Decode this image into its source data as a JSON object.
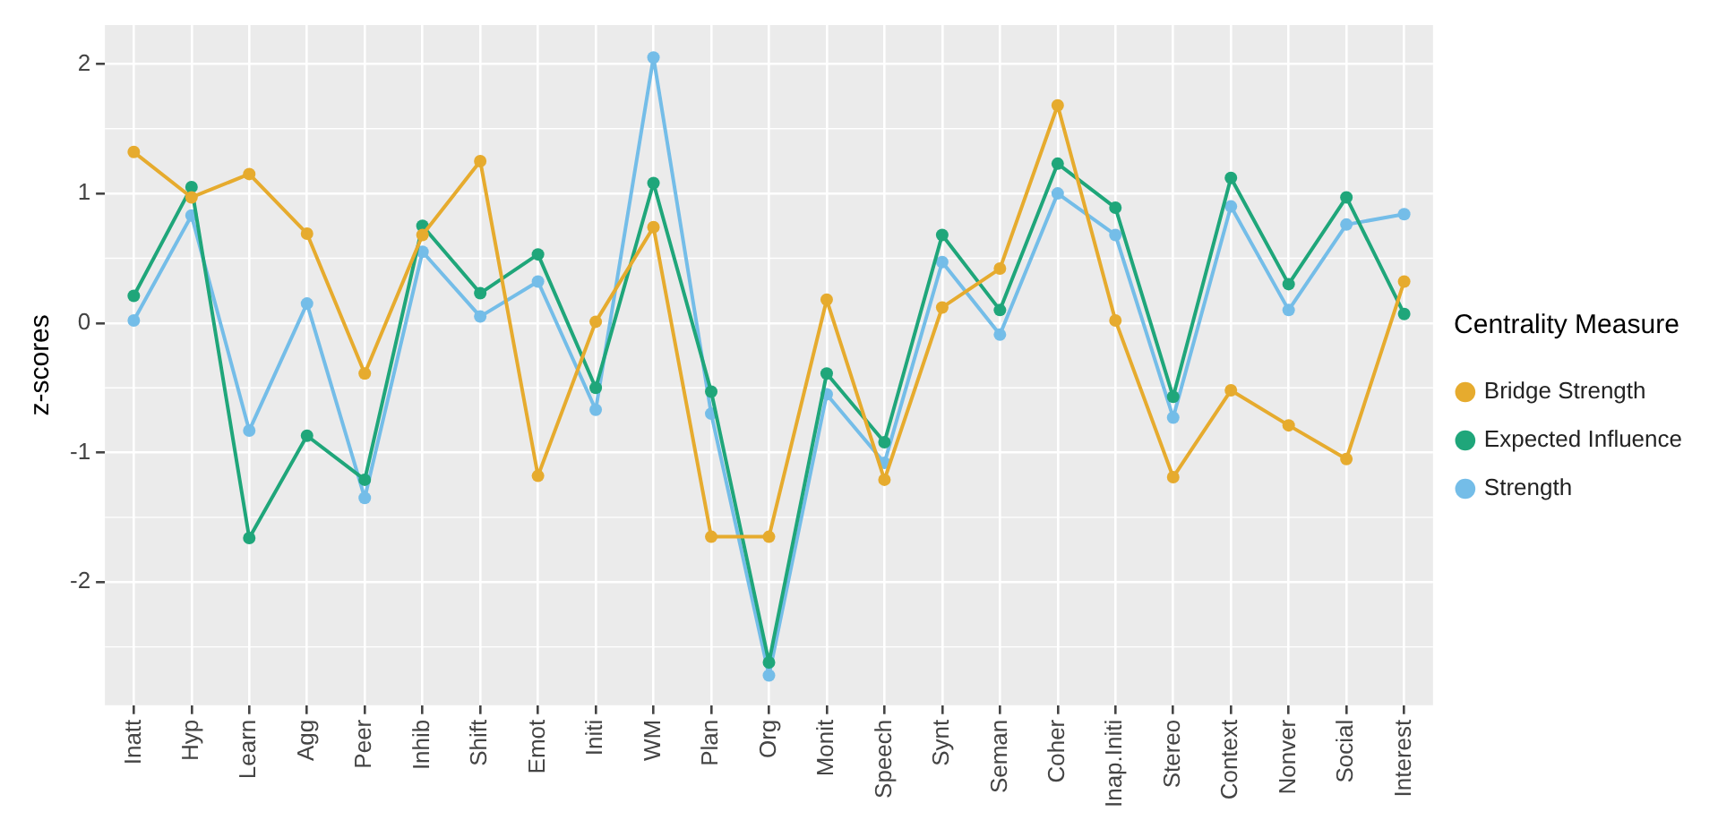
{
  "chart_data": {
    "type": "line",
    "ylabel": "z-scores",
    "legend_title": "Centrality Measure",
    "categories": [
      "Inatt",
      "Hyp",
      "Learn",
      "Agg",
      "Peer",
      "Inhib",
      "Shift",
      "Emot",
      "Initi",
      "WM",
      "Plan",
      "Org",
      "Monit",
      "Speech",
      "Synt",
      "Seman",
      "Coher",
      "Inap.Initi",
      "Stereo",
      "Context",
      "Nonver",
      "Social",
      "Interest"
    ],
    "series": [
      {
        "name": "Bridge Strength",
        "color": "#e6ab2e",
        "values": [
          1.32,
          0.97,
          1.15,
          0.69,
          -0.39,
          0.68,
          1.25,
          -1.18,
          0.01,
          0.74,
          -1.65,
          -1.65,
          0.18,
          -1.21,
          0.12,
          0.42,
          1.68,
          0.02,
          -1.19,
          -0.52,
          -0.79,
          -1.05,
          0.32
        ]
      },
      {
        "name": "Expected Influence",
        "color": "#1fa67a",
        "values": [
          0.21,
          1.05,
          -1.66,
          -0.87,
          -1.21,
          0.75,
          0.23,
          0.53,
          -0.5,
          1.08,
          -0.53,
          -2.62,
          -0.39,
          -0.92,
          0.68,
          0.1,
          1.23,
          0.89,
          -0.57,
          1.12,
          0.3,
          0.97,
          0.07
        ]
      },
      {
        "name": "Strength",
        "color": "#74bde8",
        "values": [
          0.02,
          0.83,
          -0.83,
          0.15,
          -1.35,
          0.55,
          0.05,
          0.32,
          -0.67,
          2.05,
          -0.7,
          -2.72,
          -0.55,
          -1.08,
          0.47,
          -0.09,
          1.0,
          0.68,
          -0.73,
          0.9,
          0.1,
          0.76,
          0.84
        ]
      }
    ],
    "ylim": [
      -2.95,
      2.3
    ],
    "yticks": [
      -2,
      -1,
      0,
      1,
      2
    ],
    "grid": true,
    "legend": "right",
    "marker": "circle",
    "line_style": "solid"
  }
}
